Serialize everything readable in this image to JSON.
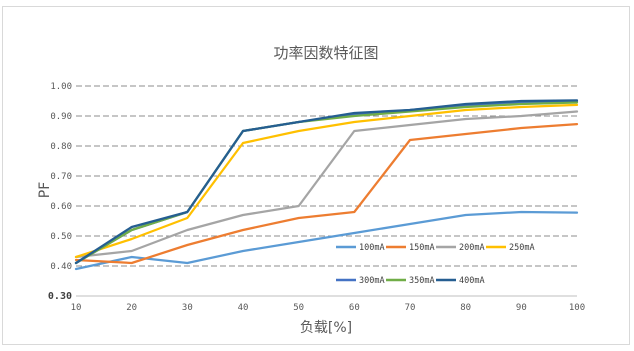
{
  "chart_data": {
    "type": "line",
    "title": "功率因数特征图",
    "xlabel": "负载[%]",
    "ylabel": "PF",
    "xlim": [
      10,
      100
    ],
    "ylim": [
      0.3,
      1.0
    ],
    "x": [
      10,
      20,
      30,
      40,
      50,
      60,
      70,
      80,
      90,
      100
    ],
    "x_tick_labels": [
      "10",
      "20",
      "30",
      "40",
      "50",
      "60",
      "70",
      "80",
      "90",
      "100"
    ],
    "y_ticks": [
      0.3,
      0.4,
      0.5,
      0.6,
      0.7,
      0.8,
      0.9,
      1.0
    ],
    "y_tick_labels": [
      "0.30",
      "0.40",
      "0.50",
      "0.60",
      "0.70",
      "0.80",
      "0.90",
      "1.00"
    ],
    "grid": "horizontal-dashed",
    "legend_position": "bottom-right-inside",
    "series": [
      {
        "name": "100mA",
        "color": "#5b9bd5",
        "values": [
          0.39,
          0.43,
          0.41,
          0.45,
          0.48,
          0.51,
          0.54,
          0.57,
          0.58,
          0.578
        ]
      },
      {
        "name": "150mA",
        "color": "#ed7d31",
        "values": [
          0.42,
          0.41,
          0.47,
          0.52,
          0.56,
          0.58,
          0.82,
          0.84,
          0.86,
          0.873
        ]
      },
      {
        "name": "200mA",
        "color": "#a5a5a5",
        "values": [
          0.43,
          0.45,
          0.52,
          0.57,
          0.6,
          0.85,
          0.87,
          0.89,
          0.9,
          0.915
        ]
      },
      {
        "name": "250mA",
        "color": "#ffc000",
        "values": [
          0.43,
          0.49,
          0.56,
          0.81,
          0.85,
          0.88,
          0.9,
          0.92,
          0.93,
          0.937
        ]
      },
      {
        "name": "300mA",
        "color": "#4472c4",
        "values": [
          0.41,
          0.52,
          0.58,
          0.85,
          0.88,
          0.905,
          0.92,
          0.935,
          0.945,
          0.948
        ]
      },
      {
        "name": "350mA",
        "color": "#70ad47",
        "values": [
          0.41,
          0.52,
          0.58,
          0.85,
          0.88,
          0.9,
          0.915,
          0.93,
          0.94,
          0.945
        ]
      },
      {
        "name": "400mA",
        "color": "#255e91",
        "values": [
          0.41,
          0.53,
          0.58,
          0.85,
          0.88,
          0.91,
          0.92,
          0.94,
          0.95,
          0.952
        ]
      }
    ]
  }
}
